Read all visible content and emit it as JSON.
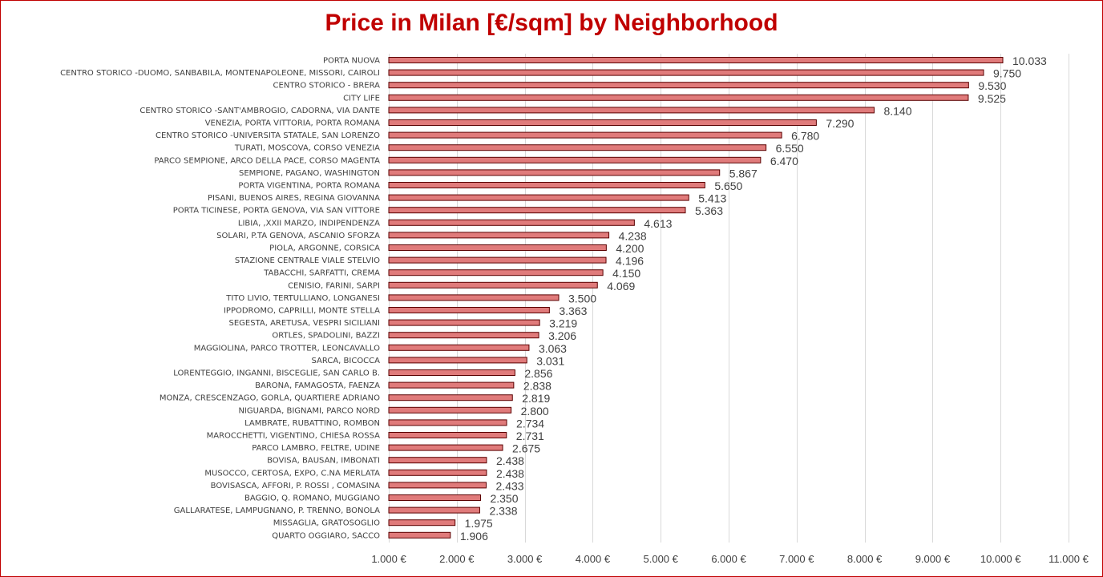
{
  "chart_data": {
    "type": "bar",
    "orientation": "horizontal",
    "title": "Price in Milan [€/sqm] by Neighborhood",
    "bar_color": "#e07b7b",
    "bar_edge_color": "#5a0000",
    "title_color": "#c00000",
    "xlim": [
      1000,
      11000
    ],
    "x_ticks": [
      1000,
      2000,
      3000,
      4000,
      5000,
      6000,
      7000,
      8000,
      9000,
      10000,
      11000
    ],
    "x_tick_labels": [
      "1.000 €",
      "2.000 €",
      "3.000 €",
      "4.000 €",
      "5.000 €",
      "6.000 €",
      "7.000 €",
      "8.000 €",
      "9.000 €",
      "10.000 €",
      "11.000 €"
    ],
    "grid": "vertical",
    "legend": "none",
    "categories": [
      "PORTA NUOVA",
      "CENTRO STORICO -DUOMO, SANBABILA, MONTENAPOLEONE, MISSORI, CAIROLI",
      "CENTRO STORICO - BRERA",
      "CITY LIFE",
      "CENTRO STORICO -SANT'AMBROGIO, CADORNA, VIA DANTE",
      "VENEZIA, PORTA VITTORIA, PORTA ROMANA",
      "CENTRO STORICO -UNIVERSITA STATALE, SAN LORENZO",
      "TURATI, MOSCOVA, CORSO VENEZIA",
      "PARCO SEMPIONE, ARCO DELLA PACE, CORSO MAGENTA",
      "SEMPIONE, PAGANO, WASHINGTON",
      "PORTA VIGENTINA, PORTA ROMANA",
      "PISANI, BUENOS AIRES, REGINA GIOVANNA",
      "PORTA TICINESE, PORTA GENOVA, VIA SAN VITTORE",
      "LIBIA, ,XXII MARZO, INDIPENDENZA",
      "SOLARI, P.TA GENOVA, ASCANIO SFORZA",
      "PIOLA, ARGONNE, CORSICA",
      "STAZIONE CENTRALE VIALE STELVIO",
      "TABACCHI, SARFATTI, CREMA",
      "CENISIO, FARINI, SARPI",
      "TITO LIVIO, TERTULLIANO, LONGANESI",
      "IPPODROMO, CAPRILLI, MONTE STELLA",
      "SEGESTA, ARETUSA, VESPRI SICILIANI",
      "ORTLES, SPADOLINI, BAZZI",
      "MAGGIOLINA, PARCO TROTTER, LEONCAVALLO",
      "SARCA, BICOCCA",
      "LORENTEGGIO, INGANNI, BISCEGLIE, SAN CARLO B.",
      "BARONA, FAMAGOSTA, FAENZA",
      "MONZA, CRESCENZAGO, GORLA, QUARTIERE ADRIANO",
      "NIGUARDA, BIGNAMI, PARCO NORD",
      "LAMBRATE, RUBATTINO, ROMBON",
      "MAROCCHETTI, VIGENTINO, CHIESA ROSSA",
      "PARCO LAMBRO, FELTRE, UDINE",
      "BOVISA, BAUSAN, IMBONATI",
      "MUSOCCO, CERTOSA, EXPO, C.NA MERLATA",
      "BOVISASCA, AFFORI, P. ROSSI , COMASINA",
      "BAGGIO, Q. ROMANO, MUGGIANO",
      "GALLARATESE, LAMPUGNANO, P. TRENNO, BONOLA",
      "MISSAGLIA, GRATOSOGLIO",
      "QUARTO OGGIARO, SACCO"
    ],
    "values": [
      10033,
      9750,
      9530,
      9525,
      8140,
      7290,
      6780,
      6550,
      6470,
      5867,
      5650,
      5413,
      5363,
      4613,
      4238,
      4200,
      4196,
      4150,
      4069,
      3500,
      3363,
      3219,
      3206,
      3063,
      3031,
      2856,
      2838,
      2819,
      2800,
      2734,
      2731,
      2675,
      2438,
      2438,
      2433,
      2350,
      2338,
      1975,
      1906
    ],
    "value_labels": [
      "10.033",
      "9.750",
      "9.530",
      "9.525",
      "8.140",
      "7.290",
      "6.780",
      "6.550",
      "6.470",
      "5.867",
      "5.650",
      "5.413",
      "5.363",
      "4.613",
      "4.238",
      "4.200",
      "4.196",
      "4.150",
      "4.069",
      "3.500",
      "3.363",
      "3.219",
      "3.206",
      "3.063",
      "3.031",
      "2.856",
      "2.838",
      "2.819",
      "2.800",
      "2.734",
      "2.731",
      "2.675",
      "2.438",
      "2.438",
      "2.433",
      "2.350",
      "2.338",
      "1.975",
      "1.906"
    ]
  }
}
